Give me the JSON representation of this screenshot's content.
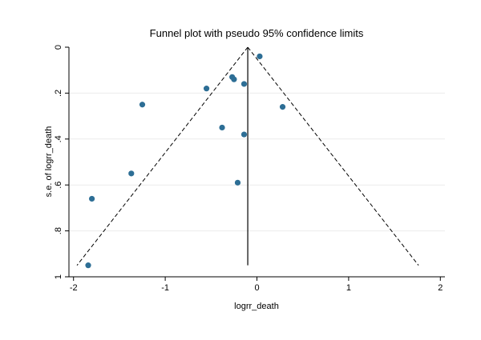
{
  "chart_data": {
    "type": "scatter",
    "title": "Funnel plot with pseudo 95% confidence limits",
    "xlabel": "logrr_death",
    "ylabel": "s.e. of logrr_death",
    "xlim": [
      -2.05,
      2.05
    ],
    "ylim": [
      1.0,
      0.0
    ],
    "y_reversed": true,
    "grid": "horizontal",
    "x_ticks": [
      -2,
      -1,
      0,
      1,
      2
    ],
    "x_tick_labels": [
      "-2",
      "-1",
      "0",
      "1",
      "2"
    ],
    "y_ticks": [
      0,
      0.2,
      0.4,
      0.6,
      0.8,
      1
    ],
    "y_tick_labels": [
      "0",
      ".2",
      ".4",
      ".6",
      ".8",
      "1"
    ],
    "pooled_estimate": -0.1,
    "confidence_limit_se_max": 0.95,
    "points": [
      {
        "x": 0.03,
        "y": 0.04
      },
      {
        "x": -0.27,
        "y": 0.13
      },
      {
        "x": -0.25,
        "y": 0.14
      },
      {
        "x": -0.14,
        "y": 0.16
      },
      {
        "x": -0.55,
        "y": 0.18
      },
      {
        "x": -1.25,
        "y": 0.25
      },
      {
        "x": 0.28,
        "y": 0.26
      },
      {
        "x": -0.38,
        "y": 0.35
      },
      {
        "x": -0.14,
        "y": 0.38
      },
      {
        "x": -1.37,
        "y": 0.55
      },
      {
        "x": -0.21,
        "y": 0.59
      },
      {
        "x": -1.8,
        "y": 0.66
      },
      {
        "x": -1.84,
        "y": 0.95
      }
    ],
    "colors": {
      "marker": "#2d6e95",
      "grid": "#ececec",
      "axis": "#000000"
    }
  }
}
